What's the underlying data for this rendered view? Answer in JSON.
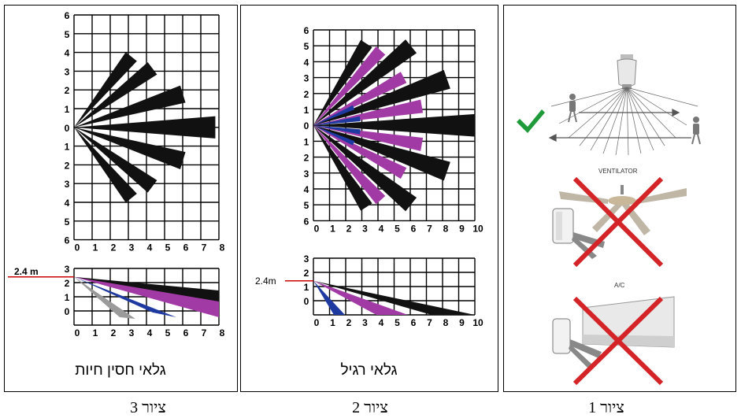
{
  "colors": {
    "black": "#111111",
    "purple": "#a23aa6",
    "blue": "#1e3aa0",
    "gray": "#9a9a9a",
    "red": "#d42428",
    "green": "#1f9a3a",
    "line_red": "#cc0000"
  },
  "figure3": {
    "caption": "ציור 3",
    "panel_caption": "גלאי חסין חיות",
    "y_ticks": [
      "6",
      "5",
      "4",
      "3",
      "2",
      "1",
      "0",
      "1",
      "2",
      "3",
      "4",
      "5",
      "6"
    ],
    "x_ticks": [
      "0",
      "1",
      "2",
      "3",
      "4",
      "5",
      "6",
      "7",
      "8"
    ],
    "side_y_ticks": [
      "3",
      "2",
      "1",
      "0"
    ],
    "side_x_ticks": [
      "0",
      "1",
      "2",
      "3",
      "4",
      "5",
      "6",
      "7",
      "8"
    ],
    "height_label": "2.4 m"
  },
  "figure2": {
    "caption": "ציור 2",
    "panel_caption": "גלאי רגיל",
    "y_ticks": [
      "6",
      "5",
      "4",
      "3",
      "2",
      "1",
      "0",
      "1",
      "2",
      "3",
      "4",
      "5",
      "6"
    ],
    "x_ticks": [
      "0",
      "1",
      "2",
      "3",
      "4",
      "5",
      "6",
      "7",
      "8",
      "9",
      "10"
    ],
    "side_y_ticks": [
      "3",
      "2",
      "1",
      "0"
    ],
    "side_x_ticks": [
      "0",
      "1",
      "2",
      "3",
      "4",
      "5",
      "6",
      "7",
      "8",
      "9",
      "10"
    ],
    "height_label": "2.4m"
  },
  "figure1": {
    "caption": "ציור 1",
    "ventilator_label": "VENTILATOR",
    "ac_label": "A/C",
    "icons": [
      "checkmark-icon",
      "walking-person-icon",
      "ceiling-fan-icon",
      "air-conditioner-icon",
      "red-x-icon"
    ]
  }
}
